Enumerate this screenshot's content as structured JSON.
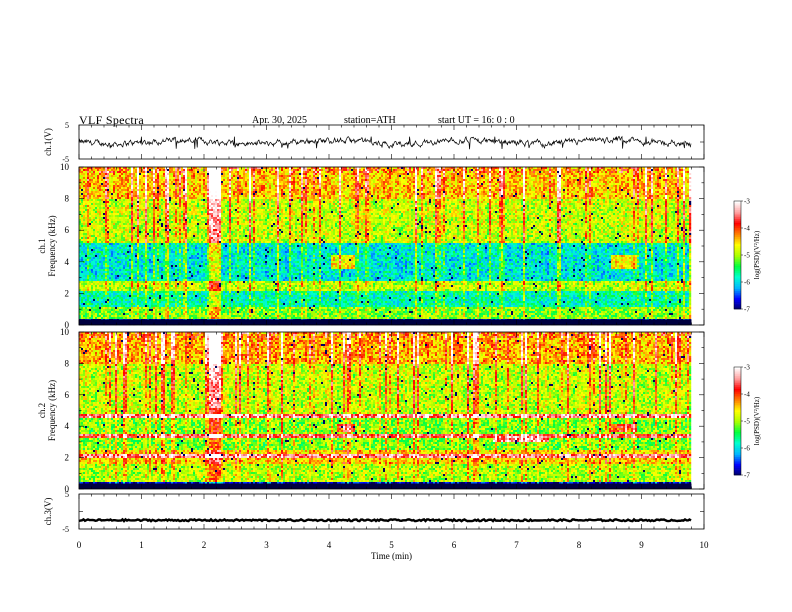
{
  "header": {
    "title": "VLF  Spectra",
    "date": "Apr. 30, 2025",
    "station": "station=ATH",
    "start_ut": "start  UT  =    16: 0   : 0"
  },
  "chart_data": [
    {
      "type": "line",
      "panel": "ch1-waveform",
      "ylabel": "ch.1(V)",
      "ylim": [
        -5,
        5
      ],
      "y_tick_labels": [
        "5",
        "-5"
      ],
      "series_description": "noisy waveform around 0 V, amplitude roughly ±1 V with occasional spikes to -2 V"
    },
    {
      "type": "heatmap",
      "panel": "ch1-spectrogram",
      "channel_label": "ch.1",
      "ylabel": "Frequency  (kHz)",
      "ylim": [
        0,
        10
      ],
      "y_tick_labels": [
        "0",
        "2",
        "4",
        "6",
        "8",
        "10"
      ],
      "xlim": [
        0,
        10
      ],
      "data_end_min": 9.8,
      "colorbar": {
        "label": "log(PSD)(V²/Hz)",
        "range": [
          -7,
          -3
        ],
        "tick_labels": [
          "-3",
          "-4",
          "-5",
          "-6",
          "-7"
        ],
        "colors": [
          "#000060",
          "#0000ff",
          "#00b4ff",
          "#00ffd0",
          "#00ff40",
          "#aaff00",
          "#ffff00",
          "#ff8000",
          "#ff0000",
          "#ffa0a0",
          "#ffffff"
        ]
      }
    },
    {
      "type": "heatmap",
      "panel": "ch2-spectrogram",
      "channel_label": "ch.2",
      "ylabel": "Frequency  (kHz)",
      "ylim": [
        0,
        10
      ],
      "y_tick_labels": [
        "0",
        "2",
        "4",
        "6",
        "8",
        "10"
      ],
      "xlim": [
        0,
        10
      ],
      "data_end_min": 9.8,
      "colorbar": {
        "label": "log(PSD)(V²/Hz)",
        "range": [
          -7,
          -3
        ],
        "tick_labels": [
          "-3",
          "-4",
          "-5",
          "-6",
          "-7"
        ],
        "colors": [
          "#000060",
          "#0000ff",
          "#00b4ff",
          "#00ffd0",
          "#00ff40",
          "#aaff00",
          "#ffff00",
          "#ff8000",
          "#ff0000",
          "#ffa0a0",
          "#ffffff"
        ]
      }
    },
    {
      "type": "line",
      "panel": "ch3-waveform",
      "ylabel": "ch.3(V)",
      "ylim": [
        -5,
        5
      ],
      "y_tick_labels": [
        "5",
        "-5"
      ],
      "series_description": "flat line at about -2.5 V"
    }
  ],
  "x_axis": {
    "label": "Time  (min)",
    "range": [
      0,
      10
    ],
    "tick_labels": [
      "0",
      "1",
      "2",
      "3",
      "4",
      "5",
      "6",
      "7",
      "8",
      "9",
      "10"
    ]
  }
}
